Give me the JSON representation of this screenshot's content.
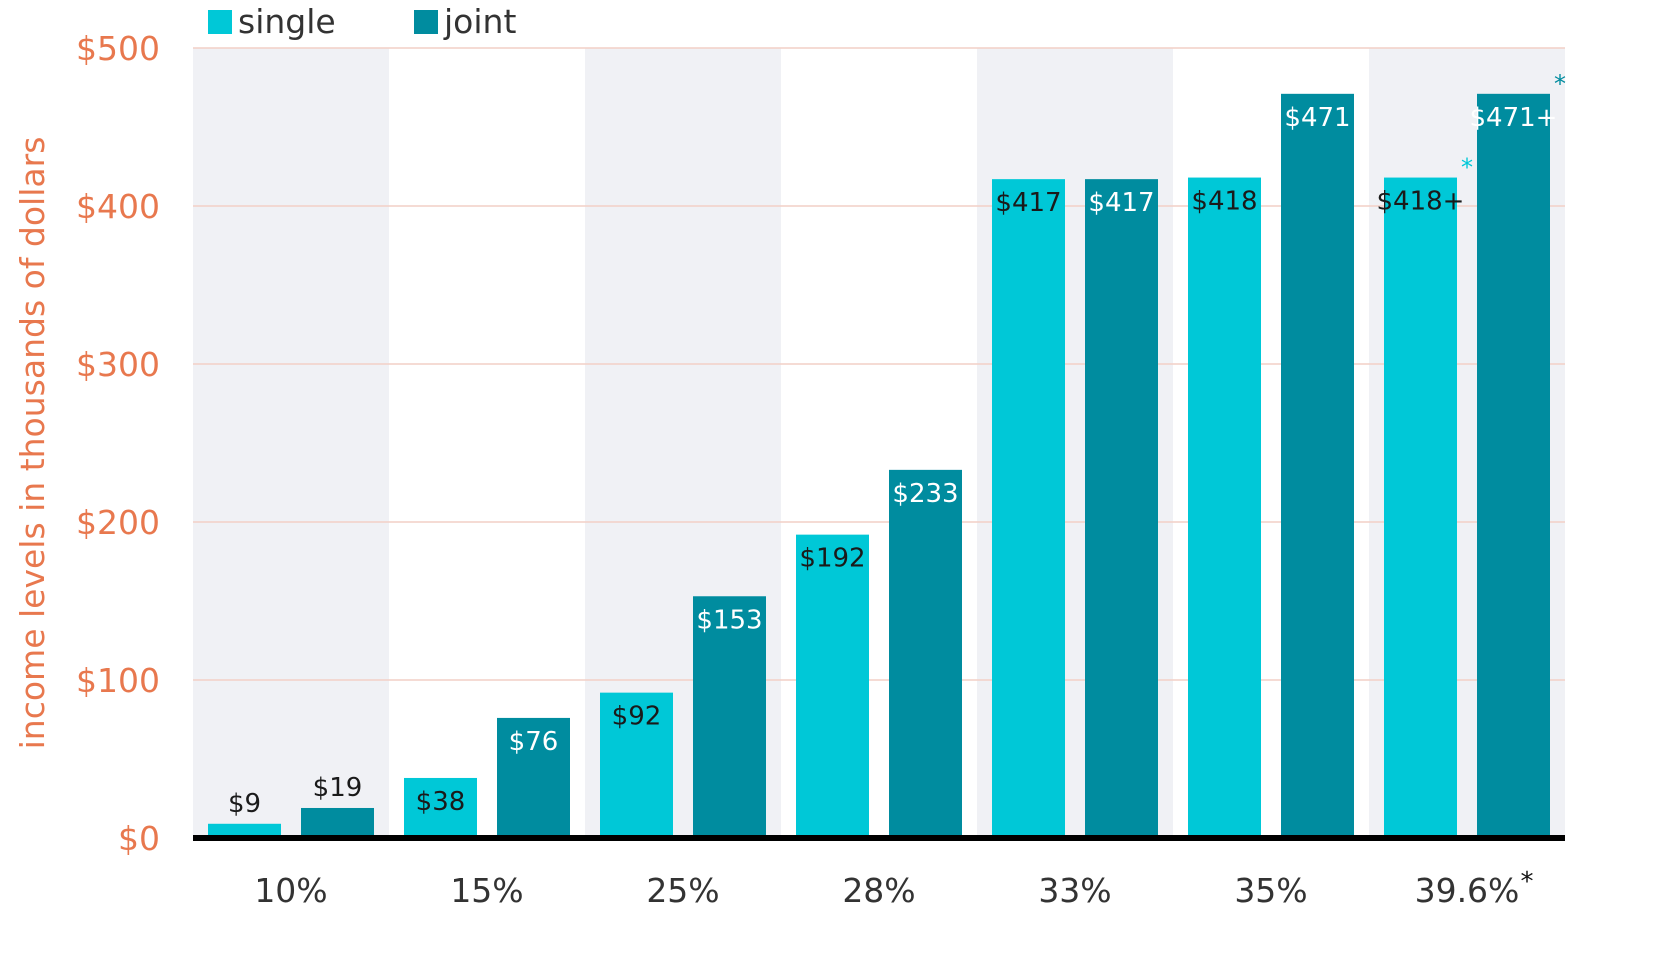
{
  "chart_data": {
    "type": "bar",
    "title": "",
    "ylabel": "income levels in thousands of dollars",
    "xlabel": "",
    "ylim": [
      0,
      500
    ],
    "yticks": [
      0,
      100,
      200,
      300,
      400,
      500
    ],
    "ytick_labels": [
      "$0",
      "$100",
      "$200",
      "$300",
      "$400",
      "$500"
    ],
    "categories": [
      "10%",
      "15%",
      "25%",
      "28%",
      "33%",
      "35%",
      "39.6%"
    ],
    "category_marks": [
      "",
      "",
      "",
      "",
      "",
      "",
      "*"
    ],
    "legend_position": "top-left",
    "series": [
      {
        "name": "single",
        "color": "#00c8d7",
        "values": [
          9,
          38,
          92,
          192,
          417,
          418,
          418
        ],
        "labels": [
          "$9",
          "$38",
          "$92",
          "$192",
          "$417",
          "$418",
          "$418+"
        ],
        "marks": [
          "",
          "",
          "",
          "",
          "",
          "",
          "*"
        ]
      },
      {
        "name": "joint",
        "color": "#008c9f",
        "values": [
          19,
          76,
          153,
          233,
          417,
          471,
          471
        ],
        "labels": [
          "$19",
          "$76",
          "$153",
          "$233",
          "$417",
          "$471",
          "$471+"
        ],
        "marks": [
          "",
          "",
          "",
          "",
          "",
          "",
          "*"
        ]
      }
    ],
    "colors": {
      "axis_text": "#e8784e",
      "band": "#f0f1f5",
      "grid": "#f2cfc6",
      "baseline": "#000000",
      "tick_text": "#333333"
    }
  }
}
